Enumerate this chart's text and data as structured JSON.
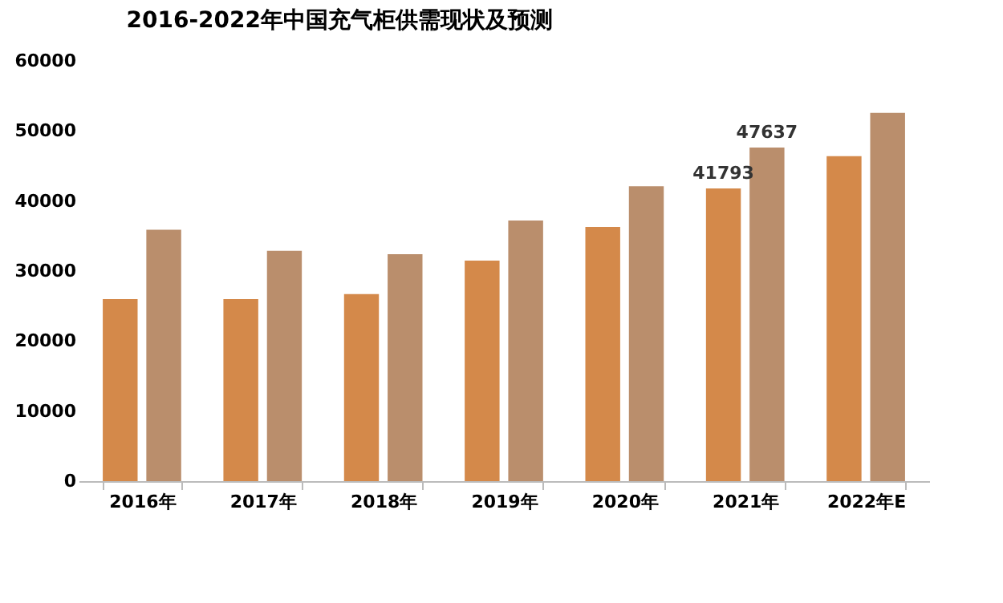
{
  "chart_data": {
    "type": "bar",
    "title": "2016-2022年中国充气柜供需现状及预测",
    "categories": [
      "2016年",
      "2017年",
      "2018年",
      "2019年",
      "2020年",
      "2021年",
      "2022年E"
    ],
    "series": [
      {
        "color": "#d4894a",
        "values": [
          26000,
          26000,
          26700,
          31500,
          36300,
          41793,
          46400
        ],
        "value_labels": [
          null,
          null,
          null,
          null,
          null,
          "41793",
          null
        ]
      },
      {
        "color": "#ba8e6c",
        "values": [
          35900,
          32900,
          32400,
          37200,
          42100,
          47637,
          52600
        ],
        "value_labels": [
          null,
          null,
          null,
          null,
          null,
          "47637",
          null
        ]
      }
    ],
    "ylim": [
      0,
      60000
    ],
    "yticks": [
      0,
      10000,
      20000,
      30000,
      40000,
      50000,
      60000
    ],
    "grid": false,
    "legend": false
  }
}
